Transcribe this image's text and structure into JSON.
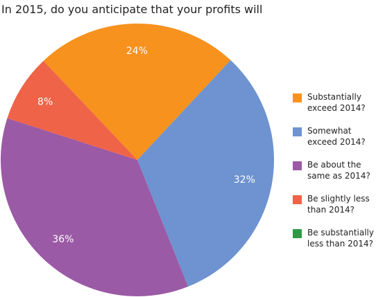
{
  "chart_data": {
    "type": "pie",
    "title": "In 2015, do you anticipate that your profits will",
    "categories": [
      "Substantially exceed 2014?",
      "Somewhat exceed 2014?",
      "Be about the same as 2014?",
      "Be slightly less than 2014?",
      "Be substantially less than 2014?"
    ],
    "values": [
      24,
      32,
      36,
      8,
      0
    ],
    "value_labels": [
      "24%",
      "32%",
      "36%",
      "8%",
      null
    ],
    "colors": [
      "#f7921e",
      "#6e93d0",
      "#9b5aa5",
      "#ef6349",
      "#2e9a48"
    ],
    "legend": "right"
  }
}
